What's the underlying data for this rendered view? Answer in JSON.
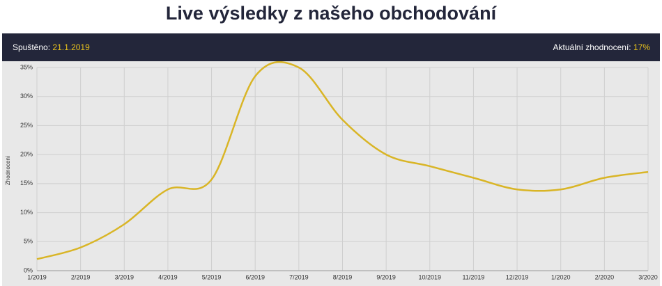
{
  "header": {
    "title": "Live výsledky z našeho obchodování",
    "started_label": "Spuštěno:",
    "started_date": "21.1.2019",
    "return_label": "Aktuální zhodnocení:",
    "return_value": "17%"
  },
  "chart_data": {
    "type": "line",
    "y_label": "Zhodnocení",
    "categories": [
      "1/2019",
      "2/2019",
      "3/2019",
      "4/2019",
      "5/2019",
      "6/2019",
      "7/2019",
      "8/2019",
      "9/2019",
      "10/2019",
      "11/2019",
      "12/2019",
      "1/2020",
      "2/2020",
      "3/2020"
    ],
    "values": [
      2,
      4,
      8,
      14,
      15.7,
      33.5,
      35,
      26,
      20,
      18,
      16,
      14,
      14,
      16,
      17
    ],
    "color": "#d9b526",
    "ylim": [
      0,
      35
    ],
    "yticks": [
      {
        "value": 0,
        "label": "0%"
      },
      {
        "value": 5,
        "label": "5%"
      },
      {
        "value": 10,
        "label": "10%"
      },
      {
        "value": 15,
        "label": "15%"
      },
      {
        "value": 20,
        "label": "20%"
      },
      {
        "value": 25,
        "label": "25%"
      },
      {
        "value": 30,
        "label": "30%"
      },
      {
        "value": 35,
        "label": "35%"
      }
    ],
    "grid": true
  }
}
